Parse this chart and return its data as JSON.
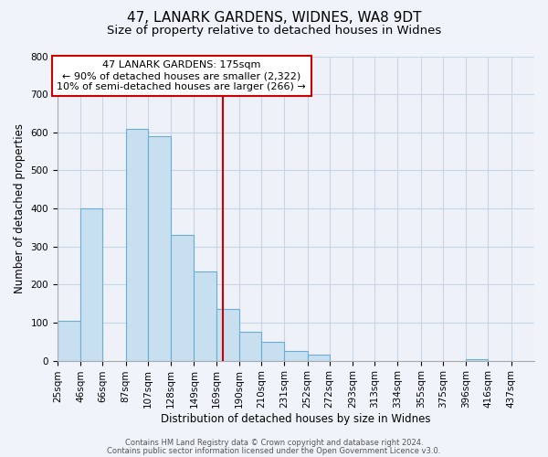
{
  "title": "47, LANARK GARDENS, WIDNES, WA8 9DT",
  "subtitle": "Size of property relative to detached houses in Widnes",
  "xlabel": "Distribution of detached houses by size in Widnes",
  "ylabel": "Number of detached properties",
  "bar_left_edges": [
    25,
    46,
    66,
    87,
    107,
    128,
    149,
    169,
    190,
    210,
    231,
    252,
    272,
    293,
    313,
    334,
    355,
    375,
    396,
    416
  ],
  "bar_heights": [
    105,
    400,
    0,
    610,
    590,
    330,
    235,
    135,
    75,
    50,
    25,
    15,
    0,
    0,
    0,
    0,
    0,
    0,
    5,
    0
  ],
  "bar_widths": [
    21,
    20,
    21,
    20,
    21,
    21,
    20,
    21,
    20,
    21,
    21,
    20,
    21,
    20,
    21,
    21,
    20,
    21,
    20,
    21
  ],
  "bar_color": "#c8dff0",
  "bar_edgecolor": "#6aaed6",
  "vline_x": 175,
  "vline_color": "#cc0000",
  "ylim": [
    0,
    800
  ],
  "yticks": [
    0,
    100,
    200,
    300,
    400,
    500,
    600,
    700,
    800
  ],
  "xtick_labels": [
    "25sqm",
    "46sqm",
    "66sqm",
    "87sqm",
    "107sqm",
    "128sqm",
    "149sqm",
    "169sqm",
    "190sqm",
    "210sqm",
    "231sqm",
    "252sqm",
    "272sqm",
    "293sqm",
    "313sqm",
    "334sqm",
    "355sqm",
    "375sqm",
    "396sqm",
    "416sqm",
    "437sqm"
  ],
  "annotation_title": "47 LANARK GARDENS: 175sqm",
  "annotation_line1": "← 90% of detached houses are smaller (2,322)",
  "annotation_line2": "10% of semi-detached houses are larger (266) →",
  "annotation_box_color": "#ffffff",
  "annotation_box_edgecolor": "#cc0000",
  "footer1": "Contains HM Land Registry data © Crown copyright and database right 2024.",
  "footer2": "Contains public sector information licensed under the Open Government Licence v3.0.",
  "background_color": "#f0f4fa",
  "plot_bg_color": "#eef2f8",
  "grid_color": "#c8d4e8",
  "title_fontsize": 11,
  "subtitle_fontsize": 9.5,
  "axis_label_fontsize": 8.5,
  "tick_fontsize": 7.5,
  "annotation_fontsize": 8,
  "footer_fontsize": 6
}
